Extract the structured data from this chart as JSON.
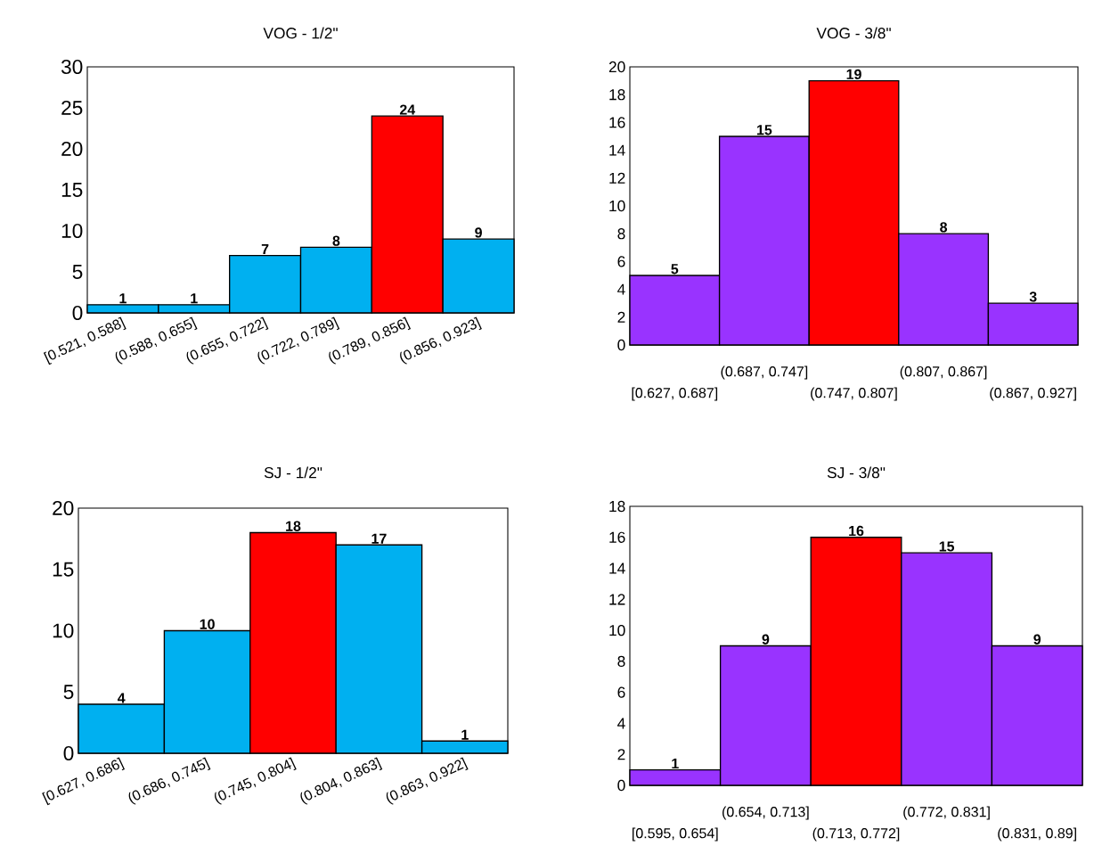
{
  "chart_data": [
    {
      "type": "bar",
      "title": "VOG - 1/2\"",
      "categories": [
        "[0.521, 0.588]",
        "(0.588, 0.655]",
        "(0.655, 0.722]",
        "(0.722, 0.789]",
        "(0.789, 0.856]",
        "(0.856, 0.923]"
      ],
      "values": [
        1,
        1,
        7,
        8,
        24,
        9
      ],
      "colors": [
        "#00b0f0",
        "#00b0f0",
        "#00b0f0",
        "#00b0f0",
        "#ff0000",
        "#00b0f0"
      ],
      "ylim": [
        0,
        30
      ],
      "yticks": [
        0,
        5,
        10,
        15,
        20,
        25,
        30
      ],
      "data_labels": true
    },
    {
      "type": "bar",
      "title": "VOG - 3/8\"",
      "categories": [
        "[0.627, 0.687]",
        "(0.687, 0.747]",
        "(0.747, 0.807]",
        "(0.807, 0.867]",
        "(0.867, 0.927]"
      ],
      "values": [
        5,
        15,
        19,
        8,
        3
      ],
      "colors": [
        "#9933ff",
        "#9933ff",
        "#ff0000",
        "#9933ff",
        "#9933ff"
      ],
      "ylim": [
        0,
        20
      ],
      "yticks": [
        0,
        2,
        4,
        6,
        8,
        10,
        12,
        14,
        16,
        18,
        20
      ],
      "data_labels": true
    },
    {
      "type": "bar",
      "title": "SJ - 1/2\"",
      "categories": [
        "[0.627, 0.686]",
        "(0.686, 0.745]",
        "(0.745, 0.804]",
        "(0.804, 0.863]",
        "(0.863, 0.922]"
      ],
      "values": [
        4,
        10,
        18,
        17,
        1
      ],
      "colors": [
        "#00b0f0",
        "#00b0f0",
        "#ff0000",
        "#00b0f0",
        "#00b0f0"
      ],
      "ylim": [
        0,
        20
      ],
      "yticks": [
        0,
        5,
        10,
        15,
        20
      ],
      "data_labels": true
    },
    {
      "type": "bar",
      "title": "SJ - 3/8\"",
      "categories": [
        "[0.595, 0.654]",
        "(0.654, 0.713]",
        "(0.713, 0.772]",
        "(0.772, 0.831]",
        "(0.831, 0.89]"
      ],
      "values": [
        1,
        9,
        16,
        15,
        9
      ],
      "colors": [
        "#9933ff",
        "#9933ff",
        "#ff0000",
        "#9933ff",
        "#9933ff"
      ],
      "ylim": [
        0,
        18
      ],
      "yticks": [
        0,
        2,
        4,
        6,
        8,
        10,
        12,
        14,
        16,
        18
      ],
      "data_labels": true
    }
  ]
}
